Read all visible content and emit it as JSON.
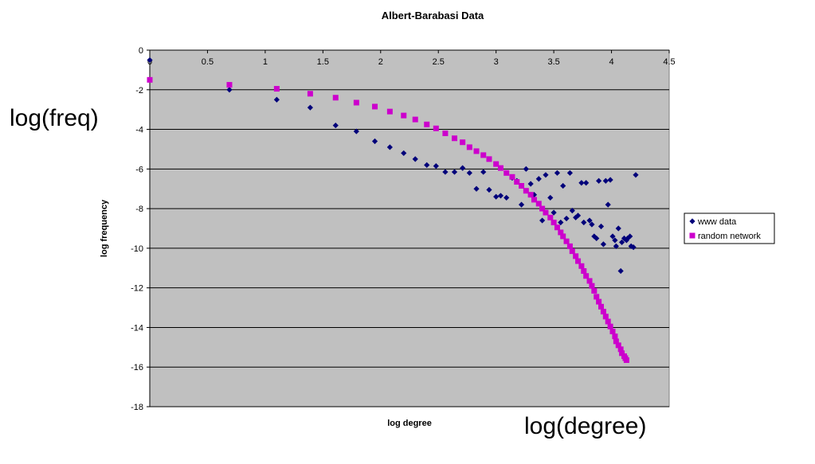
{
  "annotations": {
    "left": "log(freq)",
    "bottom": "log(degree)"
  },
  "colors": {
    "plot_background": "#c0c0c0",
    "grid": "#000000",
    "www_data": "#00007a",
    "random_network": "#cc00cc"
  },
  "chart_data": {
    "type": "scatter",
    "title": "Albert-Barabasi Data",
    "xlabel": "log degree",
    "ylabel": "log frequency",
    "xlim": [
      0,
      4.5
    ],
    "ylim": [
      -18,
      0
    ],
    "x_ticks": [
      "0",
      "0.5",
      "1",
      "1.5",
      "2",
      "2.5",
      "3",
      "3.5",
      "4",
      "4.5"
    ],
    "y_ticks": [
      "0",
      "-2",
      "-4",
      "-6",
      "-8",
      "-10",
      "-12",
      "-14",
      "-16",
      "-18"
    ],
    "grid": "horizontal",
    "x_axis_position": "top",
    "legend_position": "right",
    "series": [
      {
        "name": "www data",
        "marker": "diamond",
        "color": "#00007a",
        "points": [
          [
            0.0,
            -0.5
          ],
          [
            0.69,
            -2.0
          ],
          [
            1.1,
            -2.5
          ],
          [
            1.39,
            -2.9
          ],
          [
            1.61,
            -3.8
          ],
          [
            1.79,
            -4.1
          ],
          [
            1.95,
            -4.6
          ],
          [
            2.08,
            -4.9
          ],
          [
            2.2,
            -5.2
          ],
          [
            2.3,
            -5.5
          ],
          [
            2.4,
            -5.8
          ],
          [
            2.48,
            -5.85
          ],
          [
            2.56,
            -6.15
          ],
          [
            2.64,
            -6.15
          ],
          [
            2.71,
            -5.95
          ],
          [
            2.77,
            -6.2
          ],
          [
            2.83,
            -7.0
          ],
          [
            2.89,
            -6.15
          ],
          [
            2.94,
            -7.05
          ],
          [
            3.0,
            -7.4
          ],
          [
            3.04,
            -7.35
          ],
          [
            3.09,
            -7.45
          ],
          [
            3.14,
            -6.45
          ],
          [
            3.18,
            -6.6
          ],
          [
            3.22,
            -7.8
          ],
          [
            3.26,
            -6.0
          ],
          [
            3.3,
            -6.75
          ],
          [
            3.33,
            -7.3
          ],
          [
            3.37,
            -6.5
          ],
          [
            3.4,
            -8.6
          ],
          [
            3.43,
            -6.3
          ],
          [
            3.47,
            -7.45
          ],
          [
            3.5,
            -8.2
          ],
          [
            3.53,
            -6.2
          ],
          [
            3.56,
            -8.7
          ],
          [
            3.58,
            -6.85
          ],
          [
            3.61,
            -8.5
          ],
          [
            3.64,
            -6.2
          ],
          [
            3.66,
            -8.1
          ],
          [
            3.69,
            -8.45
          ],
          [
            3.71,
            -8.35
          ],
          [
            3.74,
            -6.7
          ],
          [
            3.76,
            -8.7
          ],
          [
            3.78,
            -6.7
          ],
          [
            3.81,
            -8.6
          ],
          [
            3.83,
            -8.8
          ],
          [
            3.85,
            -9.4
          ],
          [
            3.87,
            -9.5
          ],
          [
            3.89,
            -6.6
          ],
          [
            3.91,
            -8.9
          ],
          [
            3.93,
            -9.8
          ],
          [
            3.95,
            -6.6
          ],
          [
            3.97,
            -7.8
          ],
          [
            3.99,
            -6.55
          ],
          [
            4.01,
            -9.4
          ],
          [
            4.03,
            -9.6
          ],
          [
            4.04,
            -9.9
          ],
          [
            4.06,
            -9.0
          ],
          [
            4.08,
            -11.15
          ],
          [
            4.09,
            -9.7
          ],
          [
            4.11,
            -9.5
          ],
          [
            4.13,
            -9.6
          ],
          [
            4.14,
            -9.5
          ],
          [
            4.16,
            -9.4
          ],
          [
            4.17,
            -9.9
          ],
          [
            4.19,
            -9.95
          ],
          [
            4.21,
            -6.3
          ]
        ]
      },
      {
        "name": "random network",
        "marker": "square",
        "color": "#cc00cc",
        "points": [
          [
            0.0,
            -1.5
          ],
          [
            0.69,
            -1.75
          ],
          [
            1.1,
            -1.95
          ],
          [
            1.39,
            -2.2
          ],
          [
            1.61,
            -2.4
          ],
          [
            1.79,
            -2.65
          ],
          [
            1.95,
            -2.85
          ],
          [
            2.08,
            -3.1
          ],
          [
            2.2,
            -3.3
          ],
          [
            2.3,
            -3.5
          ],
          [
            2.4,
            -3.75
          ],
          [
            2.48,
            -3.95
          ],
          [
            2.56,
            -4.2
          ],
          [
            2.64,
            -4.45
          ],
          [
            2.71,
            -4.65
          ],
          [
            2.77,
            -4.9
          ],
          [
            2.83,
            -5.1
          ],
          [
            2.89,
            -5.3
          ],
          [
            2.94,
            -5.5
          ],
          [
            3.0,
            -5.75
          ],
          [
            3.04,
            -5.95
          ],
          [
            3.09,
            -6.2
          ],
          [
            3.14,
            -6.4
          ],
          [
            3.18,
            -6.65
          ],
          [
            3.22,
            -6.85
          ],
          [
            3.26,
            -7.1
          ],
          [
            3.3,
            -7.3
          ],
          [
            3.33,
            -7.55
          ],
          [
            3.37,
            -7.75
          ],
          [
            3.4,
            -8.0
          ],
          [
            3.43,
            -8.2
          ],
          [
            3.47,
            -8.45
          ],
          [
            3.5,
            -8.7
          ],
          [
            3.53,
            -8.95
          ],
          [
            3.56,
            -9.2
          ],
          [
            3.58,
            -9.4
          ],
          [
            3.61,
            -9.65
          ],
          [
            3.64,
            -9.9
          ],
          [
            3.66,
            -10.15
          ],
          [
            3.69,
            -10.4
          ],
          [
            3.71,
            -10.65
          ],
          [
            3.74,
            -10.9
          ],
          [
            3.76,
            -11.15
          ],
          [
            3.78,
            -11.4
          ],
          [
            3.81,
            -11.65
          ],
          [
            3.83,
            -11.9
          ],
          [
            3.85,
            -12.15
          ],
          [
            3.87,
            -12.45
          ],
          [
            3.89,
            -12.7
          ],
          [
            3.91,
            -12.95
          ],
          [
            3.93,
            -13.2
          ],
          [
            3.95,
            -13.45
          ],
          [
            3.97,
            -13.7
          ],
          [
            3.99,
            -13.95
          ],
          [
            4.01,
            -14.2
          ],
          [
            4.03,
            -14.45
          ],
          [
            4.04,
            -14.7
          ],
          [
            4.06,
            -14.9
          ],
          [
            4.08,
            -15.1
          ],
          [
            4.09,
            -15.3
          ],
          [
            4.11,
            -15.45
          ],
          [
            4.12,
            -15.55
          ],
          [
            4.13,
            -15.65
          ]
        ]
      }
    ]
  }
}
